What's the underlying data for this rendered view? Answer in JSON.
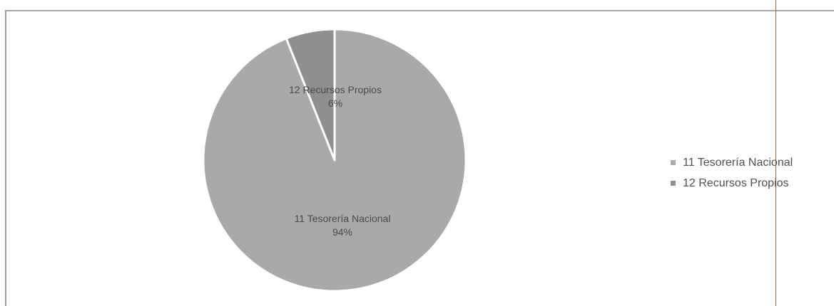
{
  "chart_data": {
    "type": "pie",
    "title": "",
    "slices": [
      {
        "name": "11 Tesorería Nacional",
        "value": 94,
        "label_name": "11 Tesorería Nacional",
        "label_value": "94%",
        "color": "#a9a9a9"
      },
      {
        "name": "12 Recursos Propios",
        "value": 6,
        "label_name": "12 Recursos Propios",
        "label_value": "6%",
        "color": "#8f8f8f"
      }
    ],
    "legend": {
      "position": "right",
      "items": [
        "11 Tesorería Nacional",
        "12 Recursos Propios"
      ]
    }
  }
}
